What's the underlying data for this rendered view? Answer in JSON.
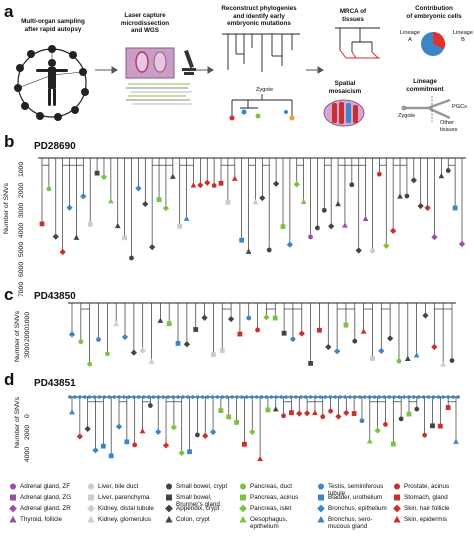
{
  "panel_a": {
    "letter": "a",
    "step1": "Multi-organ sampling\nafter rapid autopsy",
    "step2": "Laser capture\nmicrodissection\nand WGS",
    "step3": "Reconstruct phylogenies\nand identify early\nembryonic mutations",
    "zygote_top": "Zygote",
    "mrca": "MRCA of\ntissues",
    "spatial": "Spatial\nmosaicism",
    "contribution": "Contribution\nof embryonic cells",
    "lineage_a": "Lineage\nA",
    "lineage_b": "Lineage\nB",
    "commitment": "Lineage\ncommitment",
    "zygote_right": "Zygote",
    "pgcs": "PGCs",
    "other_tissues": "Other\ntissues"
  },
  "panel_b": {
    "letter": "b",
    "sample": "PD28690",
    "ylabel": "Number of SNVs",
    "ticks": [
      "1000",
      "2000",
      "3000",
      "4000",
      "5000",
      "6000",
      "7000"
    ]
  },
  "panel_c": {
    "letter": "c",
    "sample": "PD43850",
    "ylabel": "Number of SNVs",
    "ticks": [
      "1000",
      "2000",
      "3000"
    ]
  },
  "panel_d": {
    "letter": "d",
    "sample": "PD43851",
    "ylabel": "Number of SNVs",
    "ticks": [
      "0",
      "2000",
      "4000"
    ]
  },
  "legend": [
    {
      "label": "Adrenal gland, ZF",
      "color": "#9b4ea6",
      "shape": "circle"
    },
    {
      "label": "Adrenal gland, ZG",
      "color": "#9b4ea6",
      "shape": "square"
    },
    {
      "label": "Adrenal gland, ZR",
      "color": "#9b4ea6",
      "shape": "diamond"
    },
    {
      "label": "Thyroid, follicle",
      "color": "#9b4ea6",
      "shape": "triangle"
    },
    {
      "label": "Liver, bile duct",
      "color": "#cccccc",
      "shape": "circle"
    },
    {
      "label": "Liver, parenchyma",
      "color": "#cccccc",
      "shape": "square"
    },
    {
      "label": "Kidney, distal tubule",
      "color": "#cccccc",
      "shape": "diamond"
    },
    {
      "label": "Kidney, glomerulus",
      "color": "#cccccc",
      "shape": "triangle"
    },
    {
      "label": "Small bowel, crypt",
      "color": "#444444",
      "shape": "circle"
    },
    {
      "label": "Small bowel,\nBrunner's gland",
      "color": "#444444",
      "shape": "square"
    },
    {
      "label": "Appendix, crypt",
      "color": "#444444",
      "shape": "diamond"
    },
    {
      "label": "Colon, crypt",
      "color": "#444444",
      "shape": "triangle"
    },
    {
      "label": "Pancreas, duct",
      "color": "#7cc242",
      "shape": "circle"
    },
    {
      "label": "Pancreas, acinus",
      "color": "#7cc242",
      "shape": "square"
    },
    {
      "label": "Pancreas, islet",
      "color": "#7cc242",
      "shape": "diamond"
    },
    {
      "label": "Oesophagus,\nepithelium",
      "color": "#7cc242",
      "shape": "triangle"
    },
    {
      "label": "Testis, seminiferous\ntubule",
      "color": "#3a86c8",
      "shape": "circle"
    },
    {
      "label": "Bladder, urothelium",
      "color": "#3a86c8",
      "shape": "square"
    },
    {
      "label": "Bronchus, epithelium",
      "color": "#3a86c8",
      "shape": "diamond"
    },
    {
      "label": "Bronchus, sero-\nmucous gland",
      "color": "#3a86c8",
      "shape": "triangle"
    },
    {
      "label": "Prostate, acinus",
      "color": "#c8302f",
      "shape": "circle"
    },
    {
      "label": "Stomach, gland",
      "color": "#c8302f",
      "shape": "square"
    },
    {
      "label": "Skin, hair follicle",
      "color": "#c8302f",
      "shape": "diamond"
    },
    {
      "label": "Skin, epidermis",
      "color": "#c8302f",
      "shape": "triangle"
    }
  ]
}
